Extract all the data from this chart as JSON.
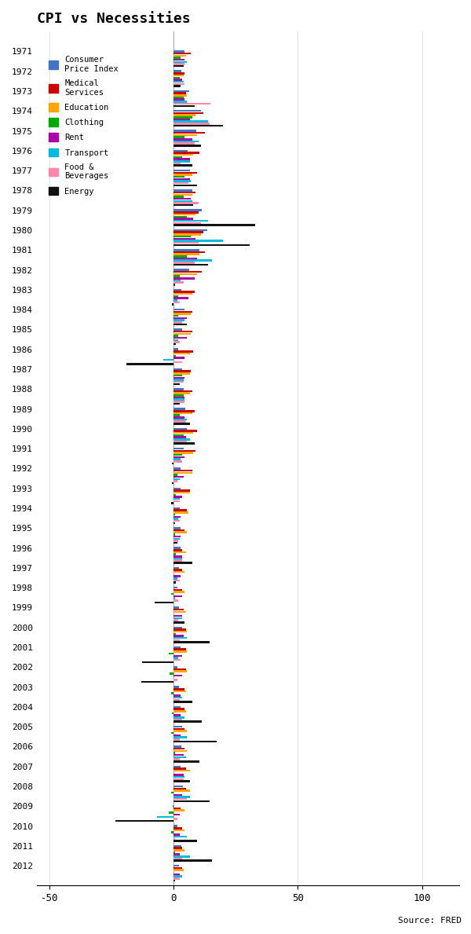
{
  "title": "CPI vs Necessities",
  "source": "Source: FRED",
  "xlim": [
    -55,
    115
  ],
  "xticks": [
    -50,
    0,
    50,
    100
  ],
  "categories": [
    "Consumer Price Index",
    "Medical Services",
    "Education",
    "Clothing",
    "Rent",
    "Transport",
    "Food & Beverages",
    "Energy"
  ],
  "colors": [
    "#4472C4",
    "#CC0000",
    "#FFA500",
    "#00AA00",
    "#AA00AA",
    "#00BBDD",
    "#FF88AA",
    "#111111"
  ],
  "years": [
    1971,
    1972,
    1973,
    1974,
    1975,
    1976,
    1977,
    1978,
    1979,
    1980,
    1981,
    1982,
    1983,
    1984,
    1985,
    1986,
    1987,
    1988,
    1989,
    1990,
    1991,
    1992,
    1993,
    1994,
    1995,
    1996,
    1997,
    1998,
    1999,
    2000,
    2001,
    2002,
    2003,
    2004,
    2005,
    2006,
    2007,
    2008,
    2009,
    2010,
    2011,
    2012
  ],
  "data": {
    "Consumer Price Index": [
      4.3,
      3.3,
      6.2,
      11.1,
      9.1,
      5.8,
      6.5,
      7.6,
      11.3,
      13.5,
      10.3,
      6.2,
      3.2,
      4.3,
      3.6,
      1.9,
      3.6,
      4.1,
      4.8,
      5.4,
      4.2,
      3.0,
      3.0,
      2.6,
      2.8,
      3.0,
      2.3,
      1.6,
      2.2,
      3.4,
      2.8,
      1.6,
      2.3,
      2.7,
      3.4,
      3.2,
      2.9,
      3.8,
      -0.4,
      1.6,
      3.2,
      2.1
    ],
    "Medical Services": [
      7.0,
      4.5,
      5.0,
      12.0,
      12.5,
      10.5,
      9.5,
      9.0,
      10.0,
      12.0,
      12.5,
      11.5,
      8.5,
      7.5,
      7.5,
      8.0,
      7.0,
      7.5,
      8.5,
      9.5,
      9.0,
      7.5,
      6.5,
      5.5,
      4.5,
      3.5,
      3.5,
      3.5,
      4.0,
      5.0,
      5.0,
      5.0,
      4.5,
      4.5,
      4.5,
      4.5,
      5.0,
      5.0,
      3.0,
      3.5,
      3.5,
      3.5
    ],
    "Education": [
      5.0,
      4.0,
      5.5,
      9.0,
      9.5,
      8.0,
      7.5,
      7.5,
      9.0,
      11.0,
      10.5,
      9.5,
      7.5,
      7.0,
      7.0,
      6.5,
      6.5,
      6.5,
      7.5,
      8.0,
      8.0,
      7.5,
      6.5,
      6.0,
      5.5,
      5.0,
      4.5,
      4.5,
      5.0,
      5.5,
      5.5,
      5.5,
      5.0,
      5.0,
      5.5,
      5.5,
      6.5,
      6.5,
      4.5,
      4.5,
      4.5,
      4.0
    ],
    "Clothing": [
      3.0,
      2.5,
      4.0,
      7.5,
      4.5,
      3.5,
      4.5,
      4.0,
      5.5,
      7.0,
      5.5,
      2.5,
      2.0,
      2.0,
      2.0,
      1.0,
      3.5,
      4.0,
      2.5,
      4.0,
      3.5,
      1.5,
      1.0,
      0.5,
      0.5,
      1.0,
      0.0,
      -1.0,
      0.0,
      1.0,
      -2.0,
      -1.5,
      -1.0,
      -0.5,
      -1.0,
      0.5,
      0.0,
      -1.0,
      -2.0,
      -1.0,
      0.5,
      0.0
    ],
    "Rent": [
      4.5,
      3.5,
      4.5,
      6.5,
      7.5,
      6.5,
      6.5,
      7.0,
      8.0,
      9.0,
      9.5,
      8.5,
      6.0,
      5.5,
      5.5,
      4.5,
      4.5,
      4.5,
      4.5,
      5.0,
      4.5,
      4.0,
      3.5,
      3.0,
      3.0,
      3.5,
      3.0,
      3.5,
      3.5,
      4.0,
      3.5,
      3.5,
      3.0,
      3.0,
      3.0,
      4.0,
      4.0,
      3.5,
      2.5,
      2.5,
      2.5,
      2.5
    ],
    "Transport": [
      5.5,
      4.0,
      5.5,
      14.0,
      10.0,
      6.5,
      7.0,
      7.5,
      14.0,
      20.0,
      15.5,
      3.0,
      1.5,
      4.5,
      2.0,
      -4.0,
      4.0,
      4.5,
      5.5,
      6.5,
      3.0,
      2.5,
      2.5,
      2.0,
      2.5,
      3.5,
      1.5,
      0.5,
      3.5,
      5.5,
      2.0,
      0.0,
      3.5,
      4.5,
      5.5,
      5.0,
      4.5,
      6.5,
      -6.5,
      5.5,
      6.5,
      3.5
    ],
    "Food & Beverages": [
      4.5,
      4.5,
      15.0,
      14.5,
      8.5,
      3.0,
      6.0,
      10.0,
      11.0,
      10.0,
      8.5,
      4.0,
      2.5,
      3.5,
      2.5,
      3.5,
      4.0,
      4.5,
      5.0,
      5.5,
      3.5,
      1.5,
      2.5,
      2.5,
      2.0,
      3.5,
      2.5,
      2.0,
      2.0,
      2.5,
      3.0,
      1.5,
      2.5,
      3.5,
      2.5,
      2.5,
      4.0,
      5.5,
      1.5,
      0.5,
      3.5,
      2.5
    ],
    "Energy": [
      4.0,
      3.0,
      8.5,
      20.0,
      11.0,
      7.5,
      9.5,
      8.0,
      33.0,
      30.5,
      14.0,
      0.5,
      -0.5,
      5.5,
      1.0,
      -19.0,
      2.5,
      2.5,
      6.5,
      8.5,
      -0.5,
      -0.5,
      -1.0,
      0.5,
      1.5,
      7.5,
      1.0,
      -7.5,
      4.5,
      14.5,
      -12.5,
      -13.0,
      7.5,
      11.5,
      17.5,
      10.5,
      6.5,
      14.5,
      -23.5,
      9.5,
      15.5,
      0.5
    ]
  }
}
